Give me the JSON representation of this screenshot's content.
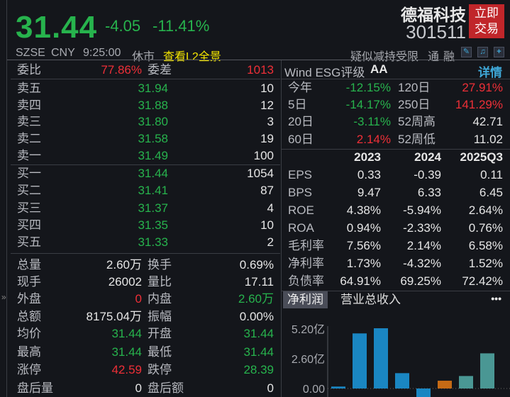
{
  "header": {
    "price": "31.44",
    "change": "-4.05",
    "change_pct": "-11.41%",
    "name": "德福科技",
    "code": "301511",
    "trade_button": [
      "立即",
      "交易"
    ],
    "exchange": "SZSE",
    "currency": "CNY",
    "time": "9:25:00",
    "status": "休市",
    "l2_link": "查看L2全景",
    "tags": "疑似减持受限",
    "tong": "通",
    "rong": "融",
    "icons": [
      "edit-icon",
      "bell-icon",
      "plus-icon"
    ]
  },
  "orderbook": {
    "weibi_label": "委比",
    "weibi": "77.86%",
    "weicha_label": "委差",
    "weicha": "1013",
    "asks": [
      {
        "label": "卖五",
        "price": "31.94",
        "vol": "10"
      },
      {
        "label": "卖四",
        "price": "31.88",
        "vol": "12"
      },
      {
        "label": "卖三",
        "price": "31.80",
        "vol": "3"
      },
      {
        "label": "卖二",
        "price": "31.58",
        "vol": "19"
      },
      {
        "label": "卖一",
        "price": "31.49",
        "vol": "100"
      }
    ],
    "bids": [
      {
        "label": "买一",
        "price": "31.44",
        "vol": "1054"
      },
      {
        "label": "买二",
        "price": "31.41",
        "vol": "87"
      },
      {
        "label": "买三",
        "price": "31.37",
        "vol": "4"
      },
      {
        "label": "买四",
        "price": "31.35",
        "vol": "10"
      },
      {
        "label": "买五",
        "price": "31.33",
        "vol": "2"
      }
    ]
  },
  "stats": [
    {
      "l1": "总量",
      "v1": "2.60万",
      "c1": "w",
      "l2": "换手",
      "v2": "0.69%",
      "c2": "w"
    },
    {
      "l1": "现手",
      "v1": "26002",
      "c1": "w",
      "l2": "量比",
      "v2": "17.11",
      "c2": "w"
    },
    {
      "l1": "外盘",
      "v1": "0",
      "c1": "r",
      "l2": "内盘",
      "v2": "2.60万",
      "c2": "g"
    },
    {
      "l1": "总额",
      "v1": "8175.04万",
      "c1": "w",
      "l2": "振幅",
      "v2": "0.00%",
      "c2": "w"
    },
    {
      "l1": "均价",
      "v1": "31.44",
      "c1": "g",
      "l2": "开盘",
      "v2": "31.44",
      "c2": "g"
    },
    {
      "l1": "最高",
      "v1": "31.44",
      "c1": "g",
      "l2": "最低",
      "v2": "31.44",
      "c2": "g"
    },
    {
      "l1": "涨停",
      "v1": "42.59",
      "c1": "r",
      "l2": "跌停",
      "v2": "28.39",
      "c2": "g"
    },
    {
      "l1": "盘后量",
      "v1": "0",
      "c1": "w",
      "l2": "盘后额",
      "v2": "0",
      "c2": "w"
    }
  ],
  "esg": {
    "label": "Wind ESG评级",
    "rating": "AA",
    "detail": "详情"
  },
  "performance": [
    {
      "l1": "今年",
      "v1": "-12.15%",
      "c1": "g",
      "l2": "120日",
      "v2": "27.91%",
      "c2": "r"
    },
    {
      "l1": "5日",
      "v1": "-14.17%",
      "c1": "g",
      "l2": "250日",
      "v2": "141.29%",
      "c2": "r"
    },
    {
      "l1": "20日",
      "v1": "-3.11%",
      "c1": "g",
      "l2": "52周高",
      "v2": "42.71",
      "c2": "w"
    },
    {
      "l1": "60日",
      "v1": "2.14%",
      "c1": "r",
      "l2": "52周低",
      "v2": "11.02",
      "c2": "w"
    }
  ],
  "financials": {
    "columns": [
      "2023",
      "2024",
      "2025Q3"
    ],
    "rows": [
      {
        "label": "EPS",
        "values": [
          "0.33",
          "-0.39",
          "0.11"
        ]
      },
      {
        "label": "BPS",
        "values": [
          "9.47",
          "6.33",
          "6.45"
        ]
      },
      {
        "label": "ROE",
        "values": [
          "4.38%",
          "-5.94%",
          "2.64%"
        ]
      },
      {
        "label": "ROA",
        "values": [
          "0.94%",
          "-2.33%",
          "0.76%"
        ]
      },
      {
        "label": "毛利率",
        "values": [
          "7.56%",
          "2.14%",
          "6.58%"
        ]
      },
      {
        "label": "净利率",
        "values": [
          "1.73%",
          "-4.32%",
          "1.52%"
        ]
      },
      {
        "label": "负债率",
        "values": [
          "64.91%",
          "69.25%",
          "72.42%"
        ]
      }
    ]
  },
  "chart_tabs": [
    "净利润",
    "营业总收入"
  ],
  "more": "•••",
  "chart_data": {
    "type": "bar",
    "yticks": [
      "5.20亿",
      "2.60亿",
      "0.00"
    ],
    "ylim": [
      -0.8,
      5.6
    ],
    "unit": "亿",
    "values": [
      0.17,
      4.81,
      5.26,
      1.34,
      -0.76,
      0.68,
      1.09,
      3.07
    ],
    "colors": [
      "#1a86c2",
      "#1a86c2",
      "#1a86c2",
      "#1a86c2",
      "#1a86c2",
      "#c56a15",
      "#4a9794",
      "#4a9794"
    ]
  }
}
